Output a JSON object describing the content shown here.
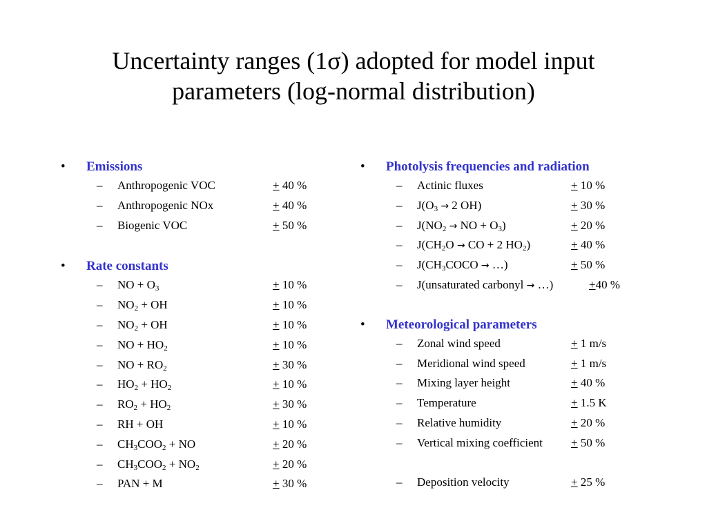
{
  "title": {
    "line1": "Uncertainty ranges (1σ) adopted for model input",
    "line2": "parameters (log-normal distribution)"
  },
  "bullet": "•",
  "dash": "–",
  "plus_minus": "+",
  "arrow": "→",
  "left": {
    "emissions": {
      "heading": "Emissions",
      "items": [
        {
          "name": "Anthropogenic VOC",
          "value": "40 %"
        },
        {
          "name": "Anthropogenic NOx",
          "value": "40 %"
        },
        {
          "name": "Biogenic VOC",
          "value": "50 %"
        }
      ]
    },
    "rate_constants": {
      "heading": "Rate constants",
      "items": [
        {
          "name_parts": [
            "NO + O",
            "3",
            ""
          ],
          "value": "10 %"
        },
        {
          "name_parts": [
            "NO",
            "2",
            " + OH"
          ],
          "value": "10 %"
        },
        {
          "name_parts": [
            "NO",
            "2",
            " + OH"
          ],
          "value": "10 %"
        },
        {
          "name_parts": [
            "NO + HO",
            "2",
            ""
          ],
          "value": "10 %"
        },
        {
          "name_parts": [
            "NO + RO",
            "2",
            ""
          ],
          "value": "30 %"
        },
        {
          "name_parts": [
            "HO",
            "2",
            " + HO",
            "2",
            ""
          ],
          "value": "10 %"
        },
        {
          "name_parts": [
            "RO",
            "2",
            " + HO",
            "2",
            ""
          ],
          "value": "30 %"
        },
        {
          "name_parts": [
            "RH + OH"
          ],
          "value": "10 %"
        },
        {
          "name_parts": [
            "CH",
            "3",
            "COO",
            "2",
            " + NO"
          ],
          "value": "20 %"
        },
        {
          "name_parts": [
            "CH",
            "3",
            "COO",
            "2",
            " + NO",
            "2",
            ""
          ],
          "value": "20 %"
        },
        {
          "name_parts": [
            "PAN + M"
          ],
          "value": "30 %"
        }
      ]
    }
  },
  "right": {
    "photolysis": {
      "heading": "Photolysis frequencies and radiation",
      "items": [
        {
          "name": "Actinic fluxes",
          "value": "10 %"
        },
        {
          "pre": [
            "J(O",
            "3",
            ""
          ],
          "post": [
            " 2 OH)"
          ],
          "value": "30 %"
        },
        {
          "pre": [
            "J(NO",
            "2",
            ""
          ],
          "post": [
            " NO + O",
            "3",
            ")"
          ],
          "value": "20 %"
        },
        {
          "pre": [
            "J(CH",
            "2",
            "O"
          ],
          "post": [
            " CO + 2 HO",
            "2",
            ")"
          ],
          "value": "40 %"
        },
        {
          "pre": [
            "J(CH",
            "3",
            "COCO"
          ],
          "post": [
            " …)"
          ],
          "value": "50 %"
        },
        {
          "pre": [
            "J(unsaturated carbonyl "
          ],
          "post": [
            " …)"
          ],
          "value": "40 %"
        }
      ]
    },
    "meteorological": {
      "heading": "Meteorological parameters",
      "items": [
        {
          "name": "Zonal wind speed",
          "value": "1 m/s"
        },
        {
          "name": "Meridional wind speed",
          "value": "1 m/s"
        },
        {
          "name": "Mixing layer height",
          "value": "40 %"
        },
        {
          "name": "Temperature",
          "value": "1.5 K"
        },
        {
          "name": "Relative humidity",
          "value": "20 %"
        },
        {
          "name": "Vertical mixing coefficient",
          "value": "50 %"
        }
      ],
      "deposition": {
        "name": "Deposition velocity",
        "value": "25 %"
      }
    }
  }
}
